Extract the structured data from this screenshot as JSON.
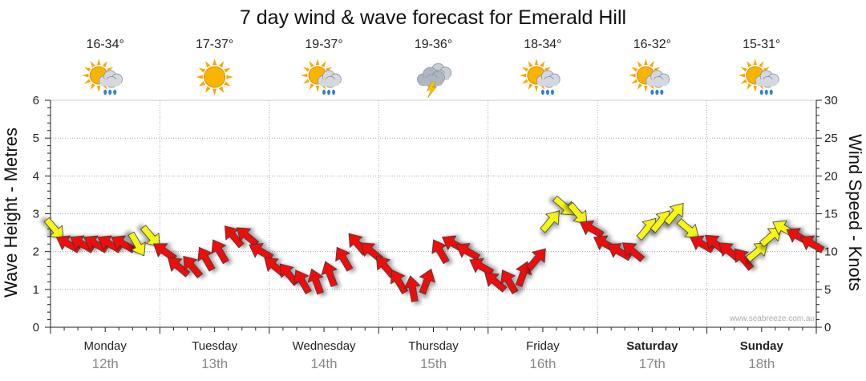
{
  "chart_data": {
    "type": "line",
    "title": "7 day wind & wave forecast for Emerald Hill",
    "ylabel": "Wave Height - Metres",
    "y2label": "Wind Speed - Knots",
    "ylim": [
      0,
      6
    ],
    "y2lim": [
      0,
      30
    ],
    "yticks": [
      "0",
      "1",
      "2",
      "3",
      "4",
      "5",
      "6"
    ],
    "y2ticks": [
      "0",
      "5",
      "10",
      "15",
      "20",
      "25",
      "30"
    ],
    "credit": "www.seabreeze.com.au",
    "colors": {
      "strong": "#ee1111",
      "light": "#f6f613",
      "outline": "#333333",
      "grid": "#999999"
    },
    "days": [
      {
        "name": "Monday",
        "date": "12th",
        "temp": "16-34°",
        "icon": "sun-cloud-rain-icon",
        "weekend": false
      },
      {
        "name": "Tuesday",
        "date": "13th",
        "temp": "17-37°",
        "icon": "sun-icon",
        "weekend": false
      },
      {
        "name": "Wednesday",
        "date": "14th",
        "temp": "19-37°",
        "icon": "sun-cloud-rain-icon",
        "weekend": false
      },
      {
        "name": "Thursday",
        "date": "15th",
        "temp": "19-36°",
        "icon": "storm-icon",
        "weekend": false
      },
      {
        "name": "Friday",
        "date": "16th",
        "temp": "18-34°",
        "icon": "sun-cloud-rain-icon",
        "weekend": false
      },
      {
        "name": "Saturday",
        "date": "17th",
        "temp": "16-32°",
        "icon": "sun-cloud-rain-icon",
        "weekend": true
      },
      {
        "name": "Sunday",
        "date": "18th",
        "temp": "15-31°",
        "icon": "sun-cloud-rain-icon",
        "weekend": true
      }
    ],
    "wind_series": {
      "name": "Wind",
      "units": "knots",
      "step_hours": 3,
      "speed": [
        13,
        11,
        11,
        11,
        11,
        11,
        11,
        12,
        10,
        8,
        8,
        9,
        10,
        12,
        12,
        10,
        8,
        7,
        6,
        6,
        7,
        9,
        11,
        10,
        8,
        6,
        5,
        6,
        10,
        11,
        10,
        8,
        6,
        6,
        7,
        9,
        14,
        16,
        15,
        13,
        11,
        10,
        10,
        13,
        14,
        15,
        13,
        11,
        11,
        10,
        9,
        10,
        12,
        13,
        12,
        11
      ],
      "direction_deg": [
        140,
        300,
        300,
        300,
        300,
        300,
        150,
        140,
        305,
        310,
        320,
        330,
        330,
        320,
        310,
        300,
        310,
        320,
        330,
        340,
        340,
        330,
        320,
        310,
        320,
        330,
        350,
        20,
        330,
        300,
        300,
        300,
        310,
        330,
        20,
        40,
        40,
        130,
        140,
        300,
        300,
        300,
        310,
        40,
        40,
        40,
        130,
        300,
        310,
        310,
        320,
        50,
        50,
        300,
        300,
        300
      ],
      "style": [
        "light",
        "strong",
        "strong",
        "strong",
        "strong",
        "strong",
        "light",
        "light",
        "strong",
        "strong",
        "strong",
        "strong",
        "strong",
        "strong",
        "strong",
        "strong",
        "strong",
        "strong",
        "strong",
        "strong",
        "strong",
        "strong",
        "strong",
        "strong",
        "strong",
        "strong",
        "strong",
        "strong",
        "strong",
        "strong",
        "strong",
        "strong",
        "strong",
        "strong",
        "strong",
        "strong",
        "light",
        "light",
        "light",
        "strong",
        "strong",
        "strong",
        "strong",
        "light",
        "light",
        "light",
        "light",
        "strong",
        "strong",
        "strong",
        "strong",
        "light",
        "light",
        "light",
        "strong",
        "strong"
      ]
    }
  }
}
